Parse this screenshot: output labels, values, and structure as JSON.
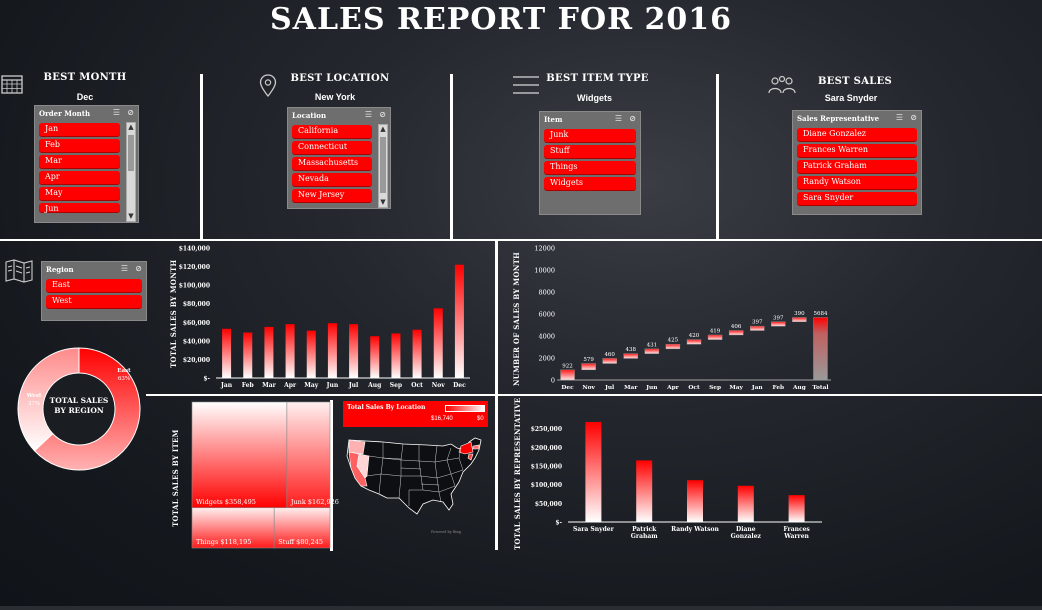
{
  "title": "SALES REPORT FOR 2016",
  "kpis": {
    "best_month": {
      "label": "BEST MONTH",
      "value": "Dec"
    },
    "best_location": {
      "label": "BEST LOCATION",
      "value": "New York"
    },
    "best_item_type": {
      "label": "BEST ITEM TYPE",
      "value": "Widgets"
    },
    "best_sales": {
      "label": "BEST SALES",
      "value": "Sara Snyder"
    }
  },
  "slicers": {
    "order_month": {
      "header": "Order Month",
      "items": [
        "Jan",
        "Feb",
        "Mar",
        "Apr",
        "May",
        "Jun"
      ]
    },
    "location": {
      "header": "Location",
      "items": [
        "California",
        "Connecticut",
        "Massachusetts",
        "Nevada",
        "New Jersey"
      ]
    },
    "item": {
      "header": "Item",
      "items": [
        "Junk",
        "Stuff",
        "Things",
        "Widgets"
      ]
    },
    "sales_rep": {
      "header": "Sales Representative",
      "items": [
        "Diane Gonzalez",
        "Frances Warren",
        "Patrick Graham",
        "Randy Watson",
        "Sara Snyder"
      ]
    },
    "region": {
      "header": "Region",
      "items": [
        "East",
        "West"
      ]
    }
  },
  "slicer_icons": {
    "multiselect": "☰",
    "clear": "⊘"
  },
  "colors": {
    "accent": "#ff0000",
    "slicer_bg": "#6f6e6e"
  },
  "chart_data": [
    {
      "type": "bar",
      "ylabel": "TOTAL SALES BY MONTH",
      "categories": [
        "Jan",
        "Feb",
        "Mar",
        "Apr",
        "May",
        "Jun",
        "Jul",
        "Aug",
        "Sep",
        "Oct",
        "Nov",
        "Dec"
      ],
      "values": [
        53000,
        49000,
        55000,
        58000,
        51000,
        59000,
        58000,
        45000,
        48000,
        52000,
        75000,
        122000
      ],
      "ylim": [
        0,
        140000
      ],
      "yticks": [
        "$-",
        "$20,000",
        "$40,000",
        "$60,000",
        "$80,000",
        "$100,000",
        "$120,000",
        "$140,000"
      ]
    },
    {
      "type": "bar",
      "ylabel": "NUMBER OF SALES BY MONTH",
      "categories": [
        "Dec",
        "Nov",
        "Jul",
        "Mar",
        "Jun",
        "Apr",
        "Oct",
        "Sep",
        "May",
        "Jan",
        "Feb",
        "Aug",
        "Total"
      ],
      "values": [
        922,
        579,
        460,
        438,
        431,
        425,
        420,
        419,
        406,
        397,
        397,
        390,
        5684
      ],
      "data_labels": [
        "922",
        "579",
        "460",
        "438",
        "431",
        "425",
        "420",
        "419",
        "406",
        "397",
        "397",
        "390",
        "5684"
      ],
      "ylim": [
        0,
        12000
      ],
      "yticks": [
        "0",
        "2000",
        "4000",
        "6000",
        "8000",
        "10000",
        "12000"
      ]
    },
    {
      "type": "pie",
      "title": "TOTAL SALES BY REGION",
      "slices": [
        {
          "name": "East",
          "value": 63,
          "label": "East 63%"
        },
        {
          "name": "West",
          "value": 37,
          "label": "West 37%"
        }
      ]
    },
    {
      "type": "treemap",
      "ylabel": "TOTAL SALES BY ITEM",
      "items": [
        {
          "name": "Widgets",
          "value": 358495,
          "label": "$358,495"
        },
        {
          "name": "Junk",
          "value": 162926,
          "label": "$162,926"
        },
        {
          "name": "Things",
          "value": 118195,
          "label": "$118,195"
        },
        {
          "name": "Stuff",
          "value": 80245,
          "label": "$80,245"
        }
      ]
    },
    {
      "type": "map",
      "title": "Total Sales By Location",
      "legend_max": "$16,740",
      "legend_min": "$0"
    },
    {
      "type": "bar",
      "ylabel": "TOTAL SALES BY REPRESENTATIVE",
      "categories": [
        "Sara Snyder",
        "Patrick Graham",
        "Randy Watson",
        "Diane Gonzalez",
        "Frances Warren"
      ],
      "category_lines": [
        [
          "Sara Snyder"
        ],
        [
          "Patrick",
          "Graham"
        ],
        [
          "Randy Watson"
        ],
        [
          "Diane",
          "Gonzalez"
        ],
        [
          "Frances",
          "Warren"
        ]
      ],
      "values": [
        268000,
        165000,
        112000,
        97000,
        72000
      ],
      "ylim": [
        0,
        300000
      ],
      "yticks": [
        "$-",
        "$50,000",
        "$100,000",
        "$150,000",
        "$200,000",
        "$250,000"
      ]
    }
  ]
}
